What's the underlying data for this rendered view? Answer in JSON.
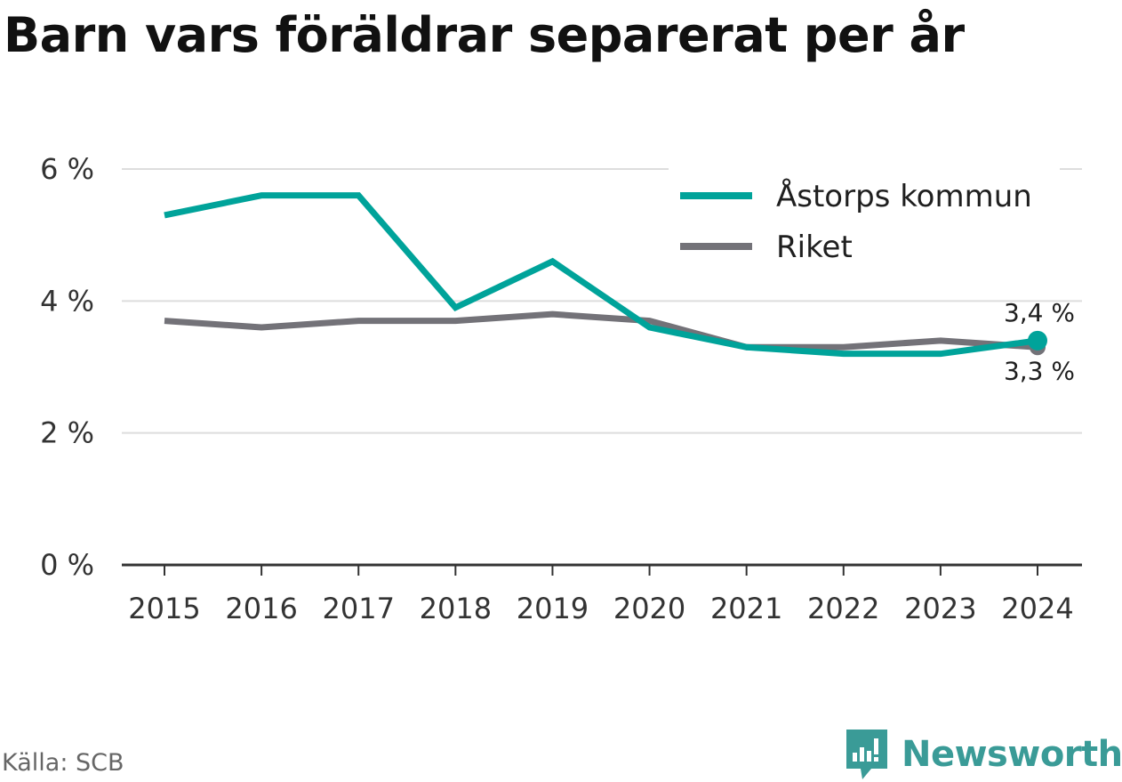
{
  "title": "Barn vars föräldrar separerat per år",
  "source": "Källa: SCB",
  "brand": {
    "name": "Newsworthy",
    "icon": "newsworthy-logo-icon"
  },
  "colors": {
    "accent": "#00a39a",
    "secondary": "#737278",
    "grid": "#dddddd",
    "axis": "#333333"
  },
  "chart_data": {
    "type": "line",
    "title": "Barn vars föräldrar separerat per år",
    "xlabel": "",
    "ylabel": "",
    "x": [
      "2015",
      "2016",
      "2017",
      "2018",
      "2019",
      "2020",
      "2021",
      "2022",
      "2023",
      "2024"
    ],
    "ylim": [
      0,
      6
    ],
    "yticks": [
      0,
      2,
      4,
      6
    ],
    "ytick_labels": [
      "0 %",
      "2 %",
      "4 %",
      "6 %"
    ],
    "grid": true,
    "legend_position": "top-right",
    "series": [
      {
        "name": "Åstorps kommun",
        "color": "#00a39a",
        "values": [
          5.3,
          5.6,
          5.6,
          3.9,
          4.6,
          3.6,
          3.3,
          3.2,
          3.2,
          3.4
        ],
        "end_label": "3,4 %"
      },
      {
        "name": "Riket",
        "color": "#737278",
        "values": [
          3.7,
          3.6,
          3.7,
          3.7,
          3.8,
          3.7,
          3.3,
          3.3,
          3.4,
          3.3
        ],
        "end_label": "3,3 %"
      }
    ]
  }
}
